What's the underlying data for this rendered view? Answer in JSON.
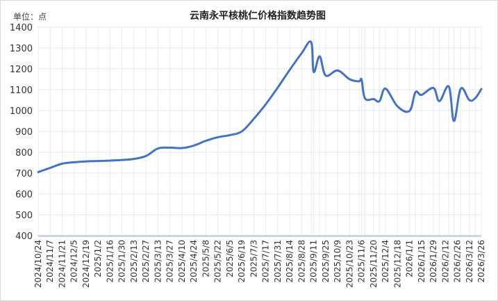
{
  "chart_data": {
    "type": "line",
    "title": "云南永平核桃仁价格指数趋势图",
    "unit_label": "单位：点",
    "ylim": [
      400,
      1400
    ],
    "yticks": [
      400,
      500,
      600,
      700,
      800,
      900,
      1000,
      1100,
      1200,
      1300,
      1400
    ],
    "x_tick_labels": [
      "2024/10/24",
      "2024/11/7",
      "2024/11/21",
      "2024/12/5",
      "2024/12/19",
      "2025/1/2",
      "2025/1/16",
      "2025/1/30",
      "2025/2/13",
      "2025/2/27",
      "2025/3/13",
      "2025/3/27",
      "2025/4/10",
      "2025/4/24",
      "2025/5/8",
      "2025/5/22",
      "2025/6/5",
      "2025/6/19",
      "2025/7/3",
      "2025/7/17",
      "2025/7/31",
      "2025/8/14",
      "2025/8/28",
      "2025/9/11",
      "2025/9/25",
      "2025/10/9",
      "2025/10/23",
      "2025/11/6",
      "2025/11/20",
      "2025/12/4",
      "2025/12/18",
      "2026/1/1",
      "2026/1/15",
      "2026/1/29",
      "2026/2/12",
      "2026/2/26",
      "2026/3/12",
      "2026/3/26"
    ],
    "series": [
      {
        "color": "#4472C4",
        "points": [
          [
            "2024/10/24",
            705
          ],
          [
            "2024/11/7",
            725
          ],
          [
            "2024/11/21",
            745
          ],
          [
            "2024/12/5",
            752
          ],
          [
            "2024/12/19",
            756
          ],
          [
            "2025/1/2",
            758
          ],
          [
            "2025/1/16",
            760
          ],
          [
            "2025/1/30",
            763
          ],
          [
            "2025/2/13",
            768
          ],
          [
            "2025/2/27",
            782
          ],
          [
            "2025/3/13",
            818
          ],
          [
            "2025/3/27",
            822
          ],
          [
            "2025/4/10",
            820
          ],
          [
            "2025/4/24",
            832
          ],
          [
            "2025/5/8",
            855
          ],
          [
            "2025/5/22",
            872
          ],
          [
            "2025/6/5",
            882
          ],
          [
            "2025/6/19",
            900
          ],
          [
            "2025/7/3",
            960
          ],
          [
            "2025/7/17",
            1030
          ],
          [
            "2025/7/31",
            1110
          ],
          [
            "2025/8/14",
            1195
          ],
          [
            "2025/8/28",
            1275
          ],
          [
            "2025/9/8",
            1328
          ],
          [
            "2025/9/11",
            1185
          ],
          [
            "2025/9/18",
            1260
          ],
          [
            "2025/9/25",
            1168
          ],
          [
            "2025/10/9",
            1192
          ],
          [
            "2025/10/23",
            1150
          ],
          [
            "2025/11/3",
            1140
          ],
          [
            "2025/11/6",
            1148
          ],
          [
            "2025/11/10",
            1058
          ],
          [
            "2025/11/20",
            1055
          ],
          [
            "2025/11/27",
            1045
          ],
          [
            "2025/12/4",
            1105
          ],
          [
            "2025/12/18",
            1020
          ],
          [
            "2026/1/1",
            998
          ],
          [
            "2026/1/8",
            1088
          ],
          [
            "2026/1/15",
            1075
          ],
          [
            "2026/1/29",
            1108
          ],
          [
            "2026/2/5",
            1045
          ],
          [
            "2026/2/16",
            1115
          ],
          [
            "2026/2/22",
            950
          ],
          [
            "2026/3/2",
            1105
          ],
          [
            "2026/3/12",
            1050
          ],
          [
            "2026/3/19",
            1060
          ],
          [
            "2026/3/26",
            1103
          ]
        ]
      }
    ],
    "grid": true,
    "legend": "none"
  }
}
